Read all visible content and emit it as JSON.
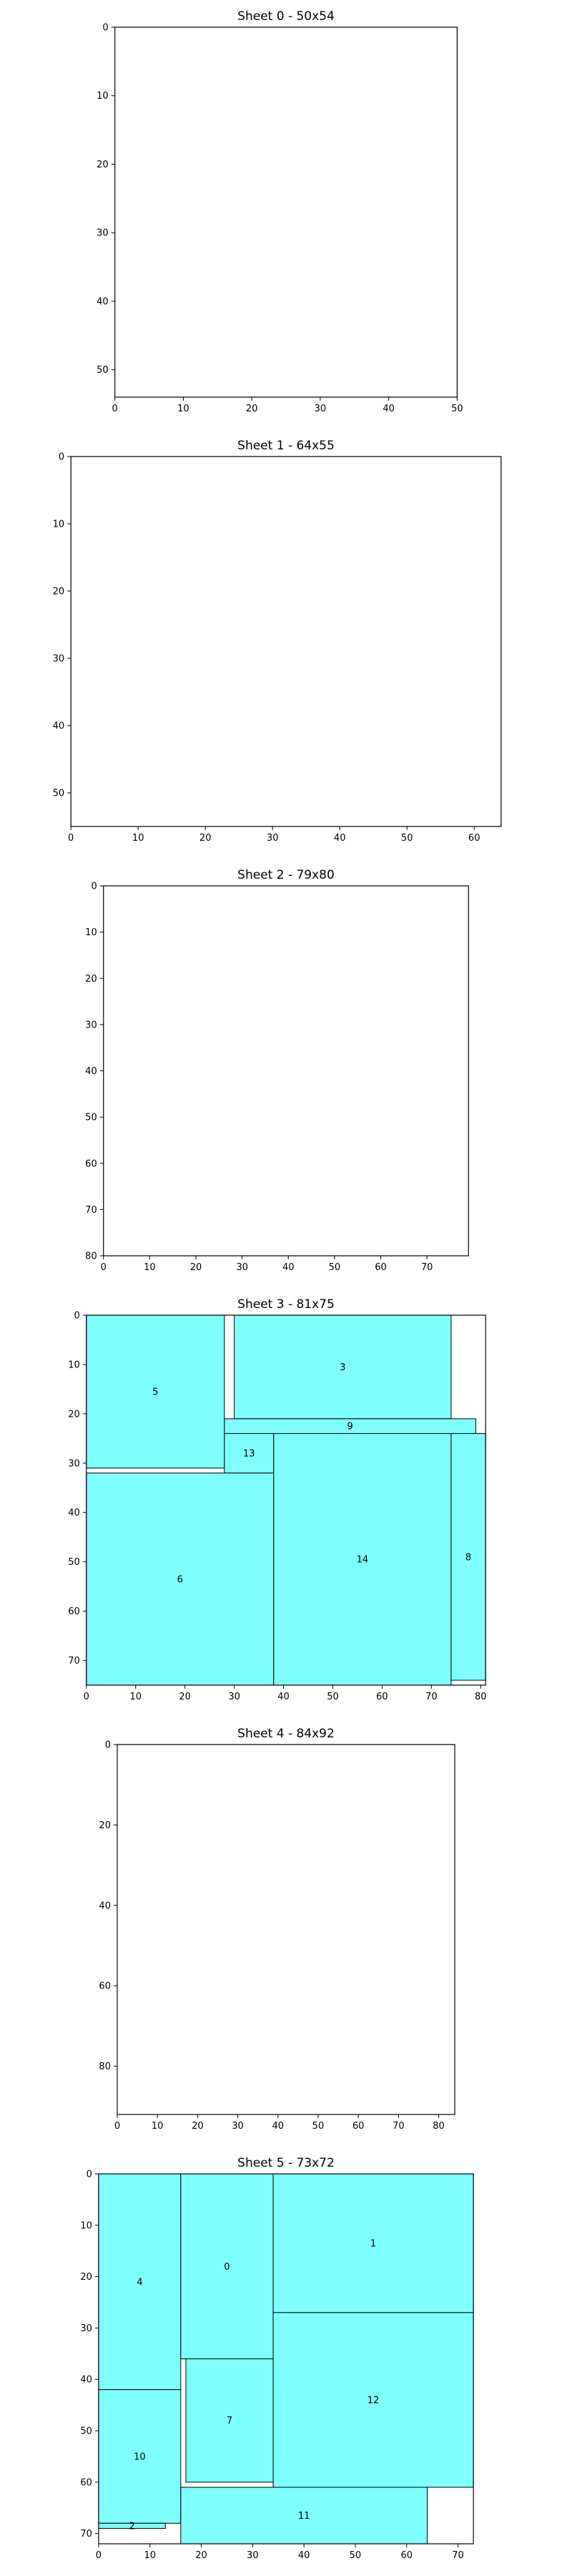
{
  "colors": {
    "piece_fill": "#7fffff",
    "piece_edge": "#000000",
    "sheet_edge": "#000000",
    "background": "#ffffff"
  },
  "chart_data": [
    {
      "type": "rect-layout",
      "title": "Sheet 0 - 50x54",
      "width": 50,
      "height": 54,
      "xlim": [
        0,
        50
      ],
      "ylim": [
        54,
        0
      ],
      "xticks": [
        0,
        10,
        20,
        30,
        40,
        50
      ],
      "yticks": [
        0,
        10,
        20,
        30,
        40,
        50
      ],
      "pieces": []
    },
    {
      "type": "rect-layout",
      "title": "Sheet 1 - 64x55",
      "width": 64,
      "height": 55,
      "xlim": [
        0,
        64
      ],
      "ylim": [
        55,
        0
      ],
      "xticks": [
        0,
        10,
        20,
        30,
        40,
        50,
        60
      ],
      "yticks": [
        0,
        10,
        20,
        30,
        40,
        50
      ],
      "pieces": []
    },
    {
      "type": "rect-layout",
      "title": "Sheet 2 - 79x80",
      "width": 79,
      "height": 80,
      "xlim": [
        0,
        79
      ],
      "ylim": [
        80,
        0
      ],
      "xticks": [
        0,
        10,
        20,
        30,
        40,
        50,
        60,
        70
      ],
      "yticks": [
        0,
        10,
        20,
        30,
        40,
        50,
        60,
        70,
        80
      ],
      "pieces": []
    },
    {
      "type": "rect-layout",
      "title": "Sheet 3 - 81x75",
      "width": 81,
      "height": 75,
      "xlim": [
        0,
        81
      ],
      "ylim": [
        75,
        0
      ],
      "xticks": [
        0,
        10,
        20,
        30,
        40,
        50,
        60,
        70,
        80
      ],
      "yticks": [
        0,
        10,
        20,
        30,
        40,
        50,
        60,
        70
      ],
      "pieces": [
        {
          "id": "5",
          "x": 0,
          "y": 0,
          "w": 28,
          "h": 31
        },
        {
          "id": "3",
          "x": 30,
          "y": 0,
          "w": 44,
          "h": 21
        },
        {
          "id": "9",
          "x": 28,
          "y": 21,
          "w": 51,
          "h": 3
        },
        {
          "id": "13",
          "x": 28,
          "y": 24,
          "w": 10,
          "h": 8
        },
        {
          "id": "6",
          "x": 0,
          "y": 32,
          "w": 38,
          "h": 43
        },
        {
          "id": "14",
          "x": 38,
          "y": 24,
          "w": 36,
          "h": 51
        },
        {
          "id": "8",
          "x": 74,
          "y": 24,
          "w": 7,
          "h": 50
        }
      ]
    },
    {
      "type": "rect-layout",
      "title": "Sheet 4 - 84x92",
      "width": 84,
      "height": 92,
      "xlim": [
        0,
        84
      ],
      "ylim": [
        92,
        0
      ],
      "xticks": [
        0,
        10,
        20,
        30,
        40,
        50,
        60,
        70,
        80
      ],
      "yticks": [
        0,
        20,
        40,
        60,
        80
      ],
      "pieces": []
    },
    {
      "type": "rect-layout",
      "title": "Sheet 5 - 73x72",
      "width": 73,
      "height": 72,
      "xlim": [
        0,
        73
      ],
      "ylim": [
        72,
        0
      ],
      "xticks": [
        0,
        10,
        20,
        30,
        40,
        50,
        60,
        70
      ],
      "yticks": [
        0,
        10,
        20,
        30,
        40,
        50,
        60,
        70
      ],
      "pieces": [
        {
          "id": "4",
          "x": 0,
          "y": 0,
          "w": 16,
          "h": 42
        },
        {
          "id": "0",
          "x": 16,
          "y": 0,
          "w": 18,
          "h": 36
        },
        {
          "id": "1",
          "x": 34,
          "y": 0,
          "w": 39,
          "h": 27
        },
        {
          "id": "12",
          "x": 34,
          "y": 27,
          "w": 39,
          "h": 34
        },
        {
          "id": "7",
          "x": 17,
          "y": 36,
          "w": 17,
          "h": 24
        },
        {
          "id": "10",
          "x": 0,
          "y": 42,
          "w": 16,
          "h": 26
        },
        {
          "id": "2",
          "x": 0,
          "y": 68,
          "w": 13,
          "h": 1
        },
        {
          "id": "11",
          "x": 16,
          "y": 61,
          "w": 48,
          "h": 11
        }
      ]
    }
  ]
}
